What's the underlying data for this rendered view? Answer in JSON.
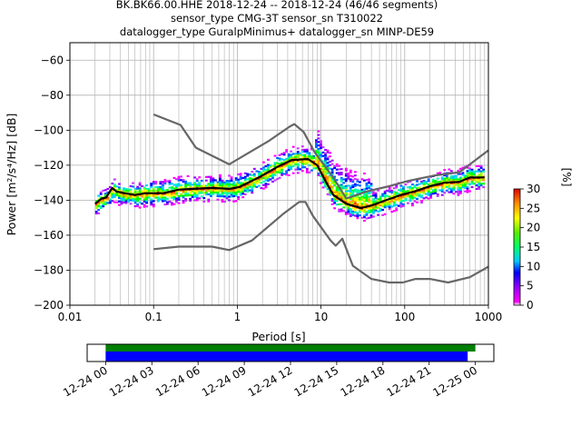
{
  "chart_data": {
    "type": "heatmap",
    "title_lines": [
      "BK.BK66.00.HHE   2018-12-24 -- 2018-12-24  (46/46 segments)",
      "sensor_type CMG-3T sensor_sn T310022",
      "datalogger_type GuralpMinimus+ datalogger_sn MINP-DE59"
    ],
    "xlabel": "Period [s]",
    "ylabel": "Power [m²/s⁴/Hz] [dB]",
    "x_scale": "log",
    "xlim": [
      0.01,
      1000
    ],
    "ylim": [
      -200,
      -50
    ],
    "x_ticks": [
      {
        "value": 0.01,
        "label": "0.01"
      },
      {
        "value": 0.1,
        "label": "0.1"
      },
      {
        "value": 1,
        "label": "1"
      },
      {
        "value": 10,
        "label": "10"
      },
      {
        "value": 100,
        "label": "100"
      },
      {
        "value": 1000,
        "label": "1000"
      }
    ],
    "y_ticks": [
      {
        "value": -60,
        "label": "−60"
      },
      {
        "value": -80,
        "label": "−80"
      },
      {
        "value": -100,
        "label": "−100"
      },
      {
        "value": -120,
        "label": "−120"
      },
      {
        "value": -140,
        "label": "−140"
      },
      {
        "value": -160,
        "label": "−160"
      },
      {
        "value": -180,
        "label": "−180"
      },
      {
        "value": -200,
        "label": "−200"
      }
    ],
    "grid": true,
    "colorbar": {
      "label": "[%]",
      "range": [
        0,
        30
      ],
      "ticks": [
        {
          "value": 0,
          "label": "0"
        },
        {
          "value": 5,
          "label": "5"
        },
        {
          "value": 10,
          "label": "10"
        },
        {
          "value": 15,
          "label": "15"
        },
        {
          "value": 20,
          "label": "20"
        },
        {
          "value": 25,
          "label": "25"
        },
        {
          "value": 30,
          "label": "30"
        }
      ]
    },
    "series": [
      {
        "color": "#666666",
        "points": [
          [
            0.1,
            -91
          ],
          [
            0.21,
            -97
          ],
          [
            0.32,
            -110
          ],
          [
            0.8,
            -119.5
          ],
          [
            2.4,
            -106
          ],
          [
            4.2,
            -98
          ],
          [
            4.8,
            -96.5
          ],
          [
            6.2,
            -101
          ],
          [
            8.5,
            -113
          ],
          [
            14,
            -127
          ],
          [
            20,
            -139
          ],
          [
            35,
            -135
          ],
          [
            65,
            -132
          ],
          [
            110,
            -129
          ],
          [
            220,
            -126
          ],
          [
            450,
            -124
          ],
          [
            1000,
            -111.5
          ]
        ]
      },
      {
        "color": "#666666",
        "points": [
          [
            0.1,
            -168
          ],
          [
            0.2,
            -166.5
          ],
          [
            0.5,
            -166.5
          ],
          [
            0.8,
            -168.5
          ],
          [
            1.5,
            -163
          ],
          [
            3.5,
            -148
          ],
          [
            5.5,
            -141
          ],
          [
            6.5,
            -141
          ],
          [
            8,
            -149
          ],
          [
            13,
            -163
          ],
          [
            15,
            -166
          ],
          [
            18,
            -162
          ],
          [
            24,
            -177.5
          ],
          [
            40,
            -185
          ],
          [
            65,
            -187
          ],
          [
            95,
            -187
          ],
          [
            135,
            -185
          ],
          [
            200,
            -185
          ],
          [
            330,
            -187
          ],
          [
            600,
            -184
          ],
          [
            1000,
            -178
          ]
        ]
      },
      {
        "color": "#000000",
        "points": [
          [
            0.02,
            -142
          ],
          [
            0.024,
            -139
          ],
          [
            0.027,
            -138.5
          ],
          [
            0.032,
            -133
          ],
          [
            0.036,
            -135
          ],
          [
            0.045,
            -136
          ],
          [
            0.06,
            -137
          ],
          [
            0.08,
            -136
          ],
          [
            0.13,
            -136
          ],
          [
            0.2,
            -134
          ],
          [
            0.3,
            -133.5
          ],
          [
            0.5,
            -133
          ],
          [
            0.8,
            -133.5
          ],
          [
            1.05,
            -132.5
          ],
          [
            1.8,
            -127
          ],
          [
            3,
            -121
          ],
          [
            4.5,
            -117
          ],
          [
            7,
            -116.5
          ],
          [
            9,
            -120
          ],
          [
            11,
            -128
          ],
          [
            14,
            -137
          ],
          [
            20,
            -142
          ],
          [
            30,
            -144.5
          ],
          [
            40,
            -143
          ],
          [
            60,
            -140
          ],
          [
            90,
            -137
          ],
          [
            130,
            -135
          ],
          [
            200,
            -132
          ],
          [
            300,
            -130
          ],
          [
            450,
            -129.5
          ],
          [
            600,
            -127
          ],
          [
            900,
            -127
          ]
        ]
      }
    ],
    "time_bar": {
      "ticks": [
        {
          "label": "12-24 00"
        },
        {
          "label": "12-24 03"
        },
        {
          "label": "12-24 06"
        },
        {
          "label": "12-24 09"
        },
        {
          "label": "12-24 12"
        },
        {
          "label": "12-24 15"
        },
        {
          "label": "12-24 18"
        },
        {
          "label": "12-24 21"
        },
        {
          "label": "12-25 00"
        }
      ],
      "range_hours": [
        -1.2,
        25.2
      ],
      "bars": [
        {
          "color": "#008000",
          "start_hours": 0,
          "end_hours": 24.0
        },
        {
          "color": "#0000ff",
          "start_hours": 0,
          "end_hours": 23.5
        }
      ]
    }
  }
}
